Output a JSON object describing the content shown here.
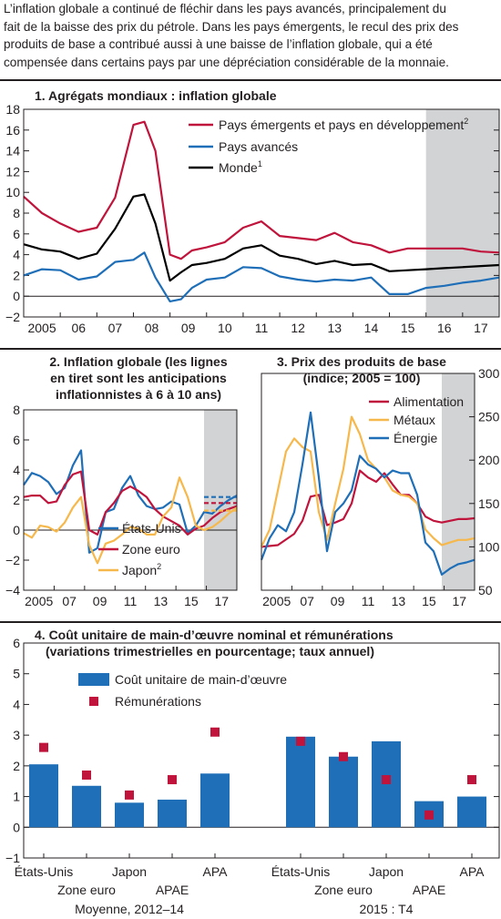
{
  "intro": {
    "lines": [
      "L’inflation globale a continué de fléchir dans les pays avancés, principalement du",
      "fait de la baisse des prix du pétrole. Dans les pays émergents, le recul des prix des",
      "produits de base a contribué aussi à une baisse de l’inflation globale, qui a été",
      "compensée dans certains pays par une dépréciation considérable de la monnaie."
    ]
  },
  "colors": {
    "red": "#c0143c",
    "blue": "#1f6fb8",
    "black": "#000000",
    "yellow": "#f7b84b",
    "shade": "#d1d3d4"
  },
  "chart_data": [
    {
      "type": "line",
      "title": "1. Agrégats mondiaux : inflation globale",
      "ylim": [
        -2,
        18
      ],
      "yticks": [
        "−2",
        "0",
        "2",
        "4",
        "6",
        "8",
        "10",
        "12",
        "14",
        "16",
        "18"
      ],
      "xlim": [
        2005,
        2018
      ],
      "xtick_labels": [
        "2005",
        "06",
        "07",
        "08",
        "09",
        "10",
        "11",
        "12",
        "13",
        "14",
        "15",
        "16",
        "17"
      ],
      "shaded_from": 2016,
      "series": [
        {
          "name": "Pays émergents et pays en développement",
          "footnote": "2",
          "color": "red",
          "x": [
            2005,
            2005.5,
            2006,
            2006.5,
            2007,
            2007.5,
            2008,
            2008.3,
            2008.6,
            2009,
            2009.3,
            2009.6,
            2010,
            2010.5,
            2011,
            2011.5,
            2012,
            2012.5,
            2013,
            2013.5,
            2014,
            2014.5,
            2015,
            2015.5,
            2016,
            2016.5,
            2017,
            2017.5,
            2018
          ],
          "y": [
            9.6,
            8.0,
            7.0,
            6.2,
            6.6,
            9.5,
            16.5,
            16.8,
            14.0,
            4.0,
            3.6,
            4.4,
            4.7,
            5.2,
            6.6,
            7.2,
            5.8,
            5.6,
            5.4,
            6.1,
            5.2,
            4.9,
            4.2,
            4.6,
            4.6,
            4.6,
            4.6,
            4.3,
            4.2
          ]
        },
        {
          "name": "Pays avancés",
          "color": "blue",
          "x": [
            2005,
            2005.5,
            2006,
            2006.5,
            2007,
            2007.5,
            2008,
            2008.3,
            2008.6,
            2009,
            2009.3,
            2009.6,
            2010,
            2010.5,
            2011,
            2011.5,
            2012,
            2012.5,
            2013,
            2013.5,
            2014,
            2014.5,
            2015,
            2015.5,
            2016,
            2016.5,
            2017,
            2017.5,
            2018
          ],
          "y": [
            2.0,
            2.6,
            2.5,
            1.6,
            1.9,
            3.3,
            3.5,
            4.2,
            1.8,
            -0.5,
            -0.3,
            0.8,
            1.6,
            1.8,
            2.8,
            2.7,
            1.9,
            1.6,
            1.4,
            1.6,
            1.5,
            1.8,
            0.2,
            0.2,
            0.8,
            1.0,
            1.3,
            1.5,
            1.8
          ]
        },
        {
          "name": "Monde",
          "footnote": "1",
          "color": "black",
          "x": [
            2005,
            2005.5,
            2006,
            2006.5,
            2007,
            2007.5,
            2008,
            2008.3,
            2008.6,
            2009,
            2009.3,
            2009.6,
            2010,
            2010.5,
            2011,
            2011.5,
            2012,
            2012.5,
            2013,
            2013.5,
            2014,
            2014.5,
            2015,
            2015.5,
            2016,
            2016.5,
            2017,
            2017.5,
            2018
          ],
          "y": [
            5.0,
            4.5,
            4.3,
            3.6,
            4.1,
            6.5,
            9.6,
            9.8,
            7.0,
            1.5,
            2.3,
            3.0,
            3.2,
            3.6,
            4.6,
            4.9,
            3.9,
            3.6,
            3.1,
            3.4,
            3.0,
            3.1,
            2.4,
            2.5,
            2.6,
            2.7,
            2.8,
            2.9,
            3.0
          ]
        }
      ]
    },
    {
      "type": "line",
      "title": "2. Inflation globale (les lignes en tiret sont les anticipations inflationnistes à 6 à 10 ans)",
      "title_lines": [
        "2. Inflation globale (les lignes",
        "en tiret sont les anticipations",
        "inflationnistes à 6 à 10 ans)"
      ],
      "ylim": [
        -4,
        8
      ],
      "yticks": [
        "−4",
        "−2",
        "0",
        "2",
        "4",
        "6",
        "8"
      ],
      "xlim": [
        2005,
        2018
      ],
      "xtick_labels": [
        "2005",
        "07",
        "09",
        "11",
        "13",
        "15",
        "17"
      ],
      "shaded_from": 2016,
      "series": [
        {
          "name": "États-Unis",
          "color": "blue",
          "x": [
            2005,
            2005.5,
            2006,
            2006.5,
            2007,
            2007.5,
            2008,
            2008.5,
            2009,
            2009.5,
            2010,
            2010.5,
            2011,
            2011.5,
            2012,
            2012.5,
            2013,
            2013.5,
            2014,
            2014.5,
            2015,
            2015.5,
            2016,
            2016.5,
            2017,
            2017.5,
            2018
          ],
          "y": [
            3.0,
            3.8,
            3.6,
            3.2,
            2.4,
            2.8,
            4.3,
            5.3,
            -1.5,
            -1.2,
            1.2,
            1.4,
            2.8,
            3.6,
            2.3,
            1.6,
            1.4,
            1.5,
            1.9,
            1.7,
            -0.2,
            0.3,
            1.2,
            1.1,
            1.6,
            2.0,
            2.3
          ]
        },
        {
          "name": "Zone euro",
          "color": "red",
          "x": [
            2005,
            2005.5,
            2006,
            2006.5,
            2007,
            2007.5,
            2008,
            2008.5,
            2009,
            2009.5,
            2010,
            2010.5,
            2011,
            2011.5,
            2012,
            2012.5,
            2013,
            2013.5,
            2014,
            2014.5,
            2015,
            2015.5,
            2016,
            2016.5,
            2017,
            2017.5,
            2018
          ],
          "y": [
            2.2,
            2.3,
            2.3,
            1.8,
            1.9,
            3.0,
            3.7,
            3.9,
            0.0,
            -0.3,
            1.2,
            1.8,
            2.6,
            2.9,
            2.6,
            2.2,
            1.4,
            0.9,
            0.6,
            0.3,
            -0.3,
            0.1,
            0.3,
            0.8,
            1.2,
            1.4,
            1.6
          ]
        },
        {
          "name": "Japon",
          "footnote": "2",
          "color": "yellow",
          "x": [
            2005,
            2005.5,
            2006,
            2006.5,
            2007,
            2007.5,
            2008,
            2008.5,
            2009,
            2009.5,
            2010,
            2010.5,
            2011,
            2011.5,
            2012,
            2012.5,
            2013,
            2013.5,
            2014,
            2014.5,
            2015,
            2015.5,
            2016,
            2016.5,
            2017,
            2017.5,
            2018
          ],
          "y": [
            -0.2,
            -0.5,
            0.3,
            0.2,
            -0.1,
            0.5,
            1.5,
            2.2,
            -1.0,
            -2.2,
            -0.9,
            -0.7,
            -0.3,
            0.2,
            0.1,
            -0.3,
            -0.3,
            0.9,
            1.5,
            3.5,
            2.2,
            0.3,
            0.0,
            0.2,
            0.6,
            1.1,
            1.5
          ]
        },
        {
          "name": "États-Unis (anticipations)",
          "color": "blue",
          "dashed": true,
          "x": [
            2016,
            2018
          ],
          "y": [
            2.2,
            2.2
          ]
        },
        {
          "name": "Zone euro (anticipations)",
          "color": "red",
          "dashed": true,
          "x": [
            2016,
            2018
          ],
          "y": [
            1.8,
            1.8
          ]
        },
        {
          "name": "Japon (anticipations)",
          "color": "yellow",
          "dashed": true,
          "x": [
            2016,
            2018
          ],
          "y": [
            1.3,
            1.3
          ]
        }
      ]
    },
    {
      "type": "line",
      "title": "3. Prix des produits de base (indice; 2005 = 100)",
      "title_lines": [
        "3. Prix des produits de base",
        "(indice; 2005 = 100)"
      ],
      "ylim": [
        50,
        300
      ],
      "yticks": [
        "50",
        "100",
        "150",
        "200",
        "250",
        "300"
      ],
      "xlim": [
        2005,
        2018
      ],
      "xtick_labels": [
        "2005",
        "07",
        "09",
        "11",
        "13",
        "15",
        "17"
      ],
      "shaded_from": 2016,
      "series": [
        {
          "name": "Alimentation",
          "color": "red",
          "x": [
            2005,
            2006,
            2007,
            2007.5,
            2008,
            2008.5,
            2009,
            2009.5,
            2010,
            2010.5,
            2011,
            2011.5,
            2012,
            2012.5,
            2013,
            2013.5,
            2014,
            2014.5,
            2015,
            2015.5,
            2016,
            2016.5,
            2017,
            2017.5,
            2018
          ],
          "y": [
            100,
            102,
            115,
            130,
            158,
            160,
            125,
            128,
            132,
            150,
            188,
            180,
            175,
            185,
            172,
            160,
            160,
            150,
            135,
            130,
            128,
            130,
            132,
            132,
            133
          ]
        },
        {
          "name": "Métaux",
          "color": "yellow",
          "x": [
            2005,
            2005.5,
            2006,
            2006.5,
            2007,
            2007.5,
            2008,
            2008.5,
            2009,
            2009.5,
            2010,
            2010.5,
            2011,
            2011.5,
            2012,
            2012.5,
            2013,
            2013.5,
            2014,
            2014.5,
            2015,
            2015.5,
            2016,
            2016.5,
            2017,
            2017.5,
            2018
          ],
          "y": [
            100,
            120,
            165,
            210,
            225,
            215,
            210,
            140,
            108,
            150,
            190,
            250,
            230,
            200,
            190,
            180,
            165,
            160,
            158,
            150,
            120,
            110,
            102,
            105,
            108,
            108,
            110
          ]
        },
        {
          "name": "Énergie",
          "color": "blue",
          "x": [
            2005,
            2005.5,
            2006,
            2006.5,
            2007,
            2007.5,
            2008,
            2008.5,
            2009,
            2009.5,
            2010,
            2010.5,
            2011,
            2011.5,
            2012,
            2012.5,
            2013,
            2013.5,
            2014,
            2014.5,
            2015,
            2015.5,
            2016,
            2016.5,
            2017,
            2017.5,
            2018
          ],
          "y": [
            85,
            110,
            125,
            118,
            140,
            195,
            255,
            180,
            95,
            140,
            150,
            165,
            205,
            195,
            190,
            180,
            188,
            185,
            185,
            160,
            105,
            95,
            68,
            75,
            80,
            82,
            85
          ]
        }
      ]
    },
    {
      "type": "bar",
      "title": "4. Coût unitaire de main-d’œuvre nominal et rémunérations (variations trimestrielles en pourcentage; taux annuel)",
      "title_lines": [
        "4. Coût unitaire de main-d’œuvre nominal et rémunérations",
        "(variations trimestrielles en pourcentage; taux annuel)"
      ],
      "ylim": [
        -1,
        6
      ],
      "yticks": [
        "−1",
        "0",
        "1",
        "2",
        "3",
        "4",
        "5",
        "6"
      ],
      "groups": [
        {
          "label": "Moyenne, 2012–14",
          "categories": [
            "États-Unis",
            "Zone euro",
            "Japon",
            "APAE",
            "APA"
          ],
          "bars": [
            2.05,
            1.35,
            0.8,
            0.9,
            1.75
          ],
          "markers": [
            2.6,
            1.7,
            1.05,
            1.55,
            3.1
          ]
        },
        {
          "label": "2015 : T4",
          "categories": [
            "États-Unis",
            "Zone euro",
            "Japon",
            "APAE",
            "APA"
          ],
          "bars": [
            2.95,
            2.3,
            2.8,
            0.85,
            1.0
          ],
          "markers": [
            2.8,
            2.3,
            1.55,
            0.4,
            1.55
          ]
        }
      ],
      "series": [
        {
          "name": "Coût unitaire de main-d’œuvre",
          "color": "blue",
          "kind": "bar"
        },
        {
          "name": "Rémunérations",
          "color": "red",
          "kind": "marker"
        }
      ]
    }
  ]
}
